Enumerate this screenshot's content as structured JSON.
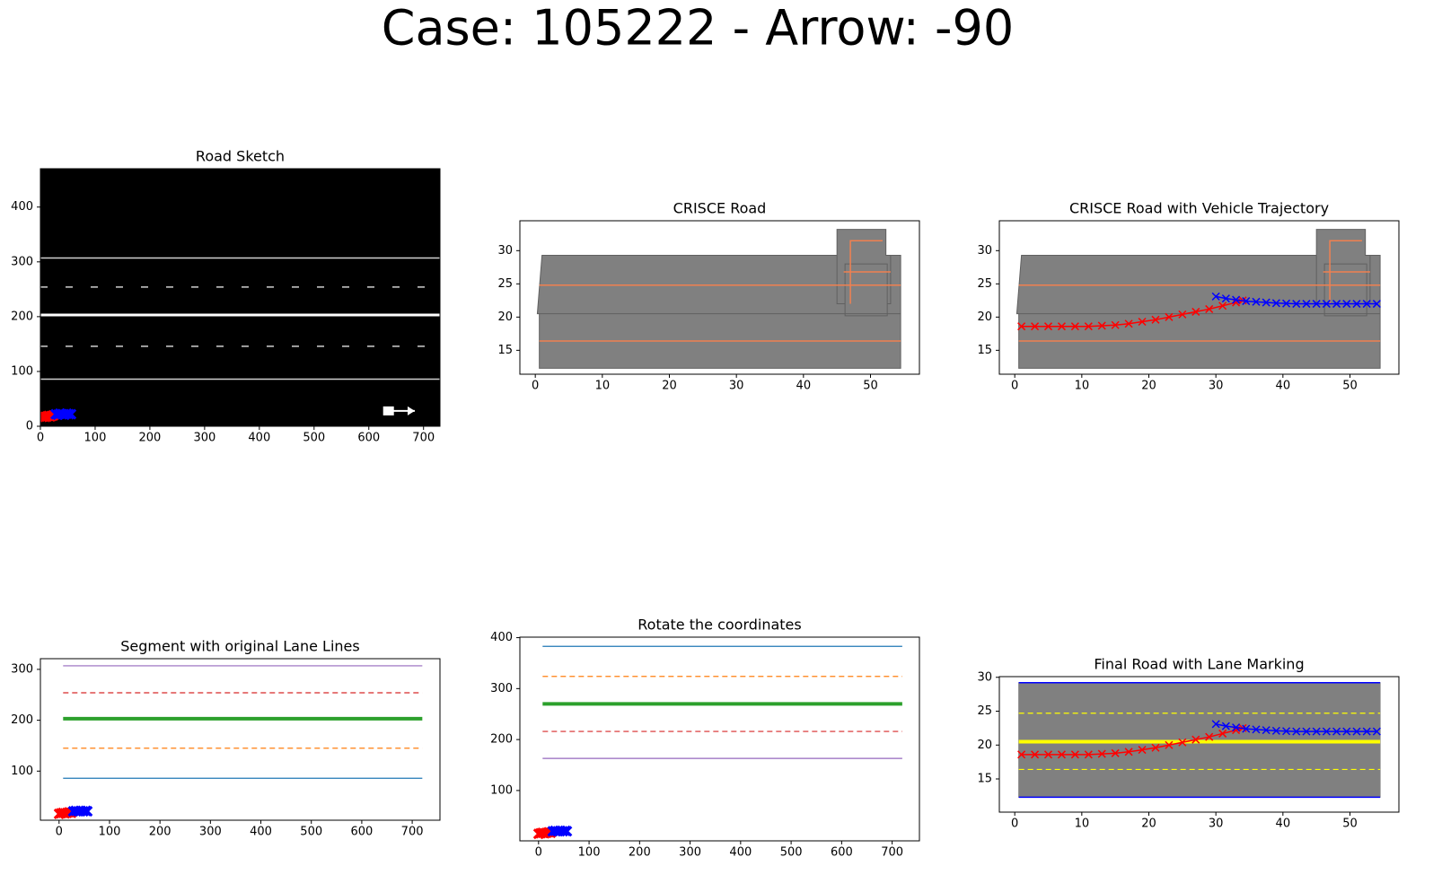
{
  "title": "Case: 105222 - Arrow: -90",
  "chart_data": [
    {
      "type": "line",
      "title": "Road Sketch",
      "facecolor": "#000000",
      "xlim": [
        0,
        730
      ],
      "ylim": [
        0,
        470
      ],
      "xticks": [
        0,
        100,
        200,
        300,
        400,
        500,
        600,
        700
      ],
      "yticks": [
        0,
        100,
        200,
        300,
        400
      ],
      "series": [
        {
          "x": [
            0,
            730
          ],
          "values": [
            307,
            307
          ],
          "color": "#d0d0d0",
          "width": 1.5
        },
        {
          "x": [
            0,
            730
          ],
          "values": [
            254,
            254
          ],
          "color": "#d0d0d0",
          "width": 1.5,
          "dash": "loose"
        },
        {
          "x": [
            0,
            730
          ],
          "values": [
            203,
            203
          ],
          "color": "#ffffff",
          "width": 3
        },
        {
          "x": [
            0,
            730
          ],
          "values": [
            146,
            146
          ],
          "color": "#d0d0d0",
          "width": 1.5,
          "dash": "loose"
        },
        {
          "x": [
            0,
            730
          ],
          "values": [
            86,
            86
          ],
          "color": "#d0d0d0",
          "width": 1.5
        },
        {
          "x": [
            3,
            6,
            9,
            12,
            15,
            18,
            21,
            24
          ],
          "values": [
            17,
            18,
            17,
            18,
            19,
            18,
            19,
            20
          ],
          "color": "#ff0000",
          "width": 3,
          "marker": "x",
          "markersize": 5
        },
        {
          "x": [
            28,
            32,
            36,
            40,
            44,
            48,
            52,
            56
          ],
          "values": [
            22,
            21,
            23,
            22,
            21,
            23,
            22,
            22
          ],
          "color": "#0000ff",
          "width": 3,
          "marker": "x",
          "markersize": 5
        },
        {
          "x": [
            636,
            684
          ],
          "values": [
            28,
            28
          ],
          "color": "#ffffff",
          "width": 2,
          "marker": "arrow"
        }
      ]
    },
    {
      "type": "line",
      "title": "CRISCE Road",
      "xlim": [
        -2.3,
        57.3
      ],
      "ylim": [
        11.4,
        34.5
      ],
      "xticks": [
        0,
        10,
        20,
        30,
        40,
        50
      ],
      "yticks": [
        15,
        20,
        25,
        30
      ],
      "series": [
        {
          "x": [
            0.3,
            1.0,
            54.5,
            54.5,
            0.6,
            0.6
          ],
          "values": [
            20.5,
            29.3,
            29.3,
            12.3,
            12.3,
            20.5
          ],
          "fill": "#808080",
          "edgecolor": "#606060"
        },
        {
          "x": [
            45,
            52.3,
            52.3,
            53,
            53,
            45
          ],
          "values": [
            33.2,
            33.2,
            29.3,
            29.3,
            22,
            22
          ],
          "fill": "#808080",
          "edgecolor": "#606060"
        },
        {
          "x": [
            46.2,
            52.5,
            52.5,
            46.2
          ],
          "values": [
            20.2,
            20.2,
            28,
            28
          ],
          "fill": "#808080",
          "edgecolor": "#606060"
        },
        {
          "x": [
            0.6,
            54.5
          ],
          "values": [
            20.5,
            20.5
          ],
          "color": "#606060",
          "width": 1
        },
        {
          "x": [
            0.6,
            54.5
          ],
          "values": [
            24.8,
            24.8
          ],
          "color": "#f08050",
          "width": 1.5
        },
        {
          "x": [
            0.6,
            54.5
          ],
          "values": [
            16.4,
            16.4
          ],
          "color": "#f08050",
          "width": 1.5
        },
        {
          "x": [
            47,
            47,
            51.8
          ],
          "values": [
            22,
            31.5,
            31.5
          ],
          "color": "#f08050",
          "width": 1.5
        },
        {
          "x": [
            46,
            53
          ],
          "values": [
            26.8,
            26.8
          ],
          "color": "#f08050",
          "width": 1.5
        }
      ]
    },
    {
      "type": "line",
      "title": "CRISCE Road with Vehicle Trajectory",
      "xlim": [
        -2.3,
        57.3
      ],
      "ylim": [
        11.4,
        34.5
      ],
      "xticks": [
        0,
        10,
        20,
        30,
        40,
        50
      ],
      "yticks": [
        15,
        20,
        25,
        30
      ],
      "series": [
        {
          "x": [
            0.3,
            1.0,
            54.5,
            54.5,
            0.6,
            0.6
          ],
          "values": [
            20.5,
            29.3,
            29.3,
            12.3,
            12.3,
            20.5
          ],
          "fill": "#808080",
          "edgecolor": "#606060"
        },
        {
          "x": [
            45,
            52.3,
            52.3,
            53,
            53,
            45
          ],
          "values": [
            33.2,
            33.2,
            29.3,
            29.3,
            22,
            22
          ],
          "fill": "#808080",
          "edgecolor": "#606060"
        },
        {
          "x": [
            46.2,
            52.5,
            52.5,
            46.2
          ],
          "values": [
            20.2,
            20.2,
            28,
            28
          ],
          "fill": "#808080",
          "edgecolor": "#606060"
        },
        {
          "x": [
            0.6,
            54.5
          ],
          "values": [
            20.5,
            20.5
          ],
          "color": "#606060",
          "width": 1
        },
        {
          "x": [
            0.6,
            54.5
          ],
          "values": [
            24.8,
            24.8
          ],
          "color": "#f08050",
          "width": 1.5
        },
        {
          "x": [
            0.6,
            54.5
          ],
          "values": [
            16.4,
            16.4
          ],
          "color": "#f08050",
          "width": 1.5
        },
        {
          "x": [
            47,
            47,
            51.8
          ],
          "values": [
            22,
            31.5,
            31.5
          ],
          "color": "#f08050",
          "width": 1.5
        },
        {
          "x": [
            46,
            53
          ],
          "values": [
            26.8,
            26.8
          ],
          "color": "#f08050",
          "width": 1.5
        },
        {
          "x": [
            1,
            3,
            5,
            7,
            9,
            11,
            13,
            15,
            17,
            19,
            21,
            23,
            25,
            27,
            29,
            31,
            33,
            34
          ],
          "values": [
            18.6,
            18.6,
            18.6,
            18.6,
            18.6,
            18.6,
            18.7,
            18.8,
            19,
            19.3,
            19.6,
            20,
            20.4,
            20.8,
            21.2,
            21.7,
            22.2,
            22.5
          ],
          "color": "#ff0000",
          "width": 1.5,
          "marker": "x"
        },
        {
          "x": [
            30,
            31.5,
            33,
            34.5,
            36,
            37.5,
            39,
            40.5,
            42,
            43.5,
            45,
            46.5,
            48,
            49.5,
            51,
            52.5,
            54
          ],
          "values": [
            23.1,
            22.8,
            22.6,
            22.4,
            22.3,
            22.2,
            22.1,
            22.05,
            22,
            22,
            22,
            22,
            22,
            22,
            22,
            22,
            22
          ],
          "color": "#0000ff",
          "width": 1.5,
          "marker": "x"
        }
      ]
    },
    {
      "type": "line",
      "title": "Segment with original Lane Lines",
      "xlim": [
        -37,
        755
      ],
      "ylim": [
        3.5,
        321
      ],
      "xticks": [
        0,
        100,
        200,
        300,
        400,
        500,
        600,
        700
      ],
      "yticks": [
        100,
        200,
        300
      ],
      "series": [
        {
          "x": [
            8,
            720
          ],
          "values": [
            307,
            307
          ],
          "color": "#9467bd",
          "width": 1.2
        },
        {
          "x": [
            8,
            720
          ],
          "values": [
            254,
            254
          ],
          "color": "#d62728",
          "width": 1.2,
          "dash": "dashed"
        },
        {
          "x": [
            8,
            720
          ],
          "values": [
            203,
            203
          ],
          "color": "#2ca02c",
          "width": 4
        },
        {
          "x": [
            8,
            720
          ],
          "values": [
            145,
            145
          ],
          "color": "#ff7f0e",
          "width": 1.2,
          "dash": "dashed"
        },
        {
          "x": [
            8,
            720
          ],
          "values": [
            86,
            86
          ],
          "color": "#1f77b4",
          "width": 1.2
        },
        {
          "x": [
            0,
            4,
            8,
            12,
            16,
            20,
            24
          ],
          "values": [
            16,
            17,
            18,
            17,
            18,
            19,
            18
          ],
          "color": "#ff0000",
          "width": 3,
          "marker": "x",
          "markersize": 5
        },
        {
          "x": [
            28,
            33,
            38,
            43,
            48,
            53,
            56
          ],
          "values": [
            21,
            22,
            21,
            22,
            21,
            22,
            21
          ],
          "color": "#0000ff",
          "width": 3,
          "marker": "x",
          "markersize": 5
        }
      ]
    },
    {
      "type": "line",
      "title": "Rotate the coordinates",
      "xlim": [
        -37,
        754
      ],
      "ylim": [
        1.2,
        401
      ],
      "xticks": [
        0,
        100,
        200,
        300,
        400,
        500,
        600,
        700
      ],
      "yticks": [
        100,
        200,
        300,
        400
      ],
      "series": [
        {
          "x": [
            8,
            720
          ],
          "values": [
            383,
            383
          ],
          "color": "#1f77b4",
          "width": 1.2
        },
        {
          "x": [
            8,
            720
          ],
          "values": [
            324,
            324
          ],
          "color": "#ff7f0e",
          "width": 1.2,
          "dash": "dashed"
        },
        {
          "x": [
            8,
            720
          ],
          "values": [
            270,
            270
          ],
          "color": "#2ca02c",
          "width": 4
        },
        {
          "x": [
            8,
            720
          ],
          "values": [
            216,
            216
          ],
          "color": "#d62728",
          "width": 1.2,
          "dash": "dashed"
        },
        {
          "x": [
            8,
            720
          ],
          "values": [
            163,
            163
          ],
          "color": "#9467bd",
          "width": 1.2
        },
        {
          "x": [
            0,
            4,
            8,
            12,
            16,
            20,
            24
          ],
          "values": [
            15,
            16,
            17,
            16,
            17,
            18,
            17
          ],
          "color": "#ff0000",
          "width": 3,
          "marker": "x",
          "markersize": 5
        },
        {
          "x": [
            28,
            33,
            38,
            43,
            48,
            53,
            56
          ],
          "values": [
            20,
            21,
            20,
            21,
            20,
            21,
            20
          ],
          "color": "#0000ff",
          "width": 3,
          "marker": "x",
          "markersize": 5
        }
      ]
    },
    {
      "type": "line",
      "title": "Final Road with Lane Marking",
      "xlim": [
        -2.3,
        57.3
      ],
      "ylim": [
        10.1,
        30.1
      ],
      "xticks": [
        0,
        10,
        20,
        30,
        40,
        50
      ],
      "yticks": [
        15,
        20,
        25,
        30
      ],
      "series": [
        {
          "x": [
            0.6,
            54.5,
            54.5,
            0.6
          ],
          "values": [
            29.2,
            29.2,
            12.3,
            12.3
          ],
          "fill": "#808080",
          "edgecolor": "#808080"
        },
        {
          "x": [
            0.6,
            54.5
          ],
          "values": [
            29.2,
            29.2
          ],
          "color": "#0000ff",
          "width": 1.5
        },
        {
          "x": [
            0.6,
            54.5
          ],
          "values": [
            12.3,
            12.3
          ],
          "color": "#0000ff",
          "width": 1.5
        },
        {
          "x": [
            0.6,
            54.5
          ],
          "values": [
            24.7,
            24.7
          ],
          "color": "#ffff00",
          "width": 1.2,
          "dash": "dashed"
        },
        {
          "x": [
            0.6,
            54.5
          ],
          "values": [
            16.4,
            16.4
          ],
          "color": "#ffff00",
          "width": 1.2,
          "dash": "dashed"
        },
        {
          "x": [
            0.6,
            54.5
          ],
          "values": [
            20.5,
            20.5
          ],
          "color": "#ffff00",
          "width": 4
        },
        {
          "x": [
            1,
            3,
            5,
            7,
            9,
            11,
            13,
            15,
            17,
            19,
            21,
            23,
            25,
            27,
            29,
            31,
            33,
            34
          ],
          "values": [
            18.6,
            18.6,
            18.6,
            18.6,
            18.6,
            18.6,
            18.7,
            18.8,
            19,
            19.3,
            19.6,
            20,
            20.4,
            20.8,
            21.2,
            21.7,
            22.2,
            22.5
          ],
          "color": "#ff0000",
          "width": 1.5,
          "marker": "x"
        },
        {
          "x": [
            30,
            31.5,
            33,
            34.5,
            36,
            37.5,
            39,
            40.5,
            42,
            43.5,
            45,
            46.5,
            48,
            49.5,
            51,
            52.5,
            54
          ],
          "values": [
            23.1,
            22.8,
            22.6,
            22.4,
            22.3,
            22.2,
            22.1,
            22.05,
            22,
            22,
            22,
            22,
            22,
            22,
            22,
            22,
            22
          ],
          "color": "#0000ff",
          "width": 1.5,
          "marker": "x"
        }
      ]
    }
  ]
}
